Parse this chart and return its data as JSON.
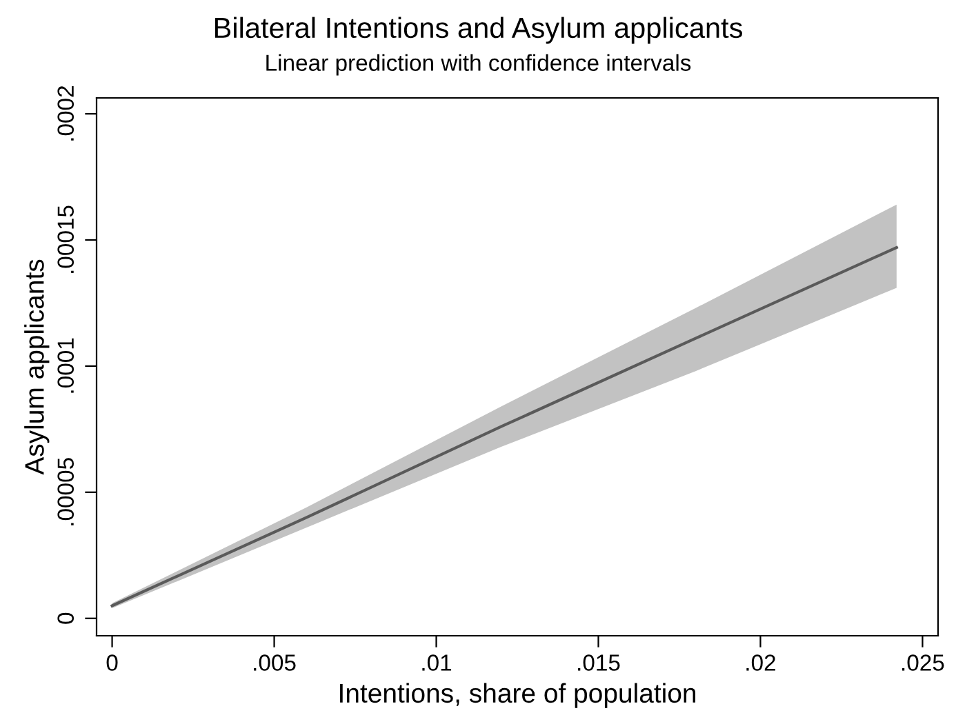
{
  "chart_data": {
    "type": "line",
    "title": "Bilateral Intentions and Asylum applicants",
    "subtitle": "Linear prediction with confidence intervals",
    "xlabel": "Intentions, share of population",
    "ylabel": "Asylum applicants",
    "series": [
      {
        "color": "#5a5a5a",
        "x": [
          0,
          0.006,
          0.012,
          0.018,
          0.0242
        ],
        "values": [
          5e-06,
          4e-05,
          7.6e-05,
          0.000111,
          0.000147
        ],
        "lower": [
          4e-06,
          3.6e-05,
          6.8e-05,
          9.8e-05,
          0.000131
        ],
        "upper": [
          6e-06,
          4.4e-05,
          8.4e-05,
          0.000123,
          0.000164
        ]
      }
    ],
    "xlim": [
      -0.00048,
      0.02548
    ],
    "xticks": [
      {
        "value": 0,
        "label": "0"
      },
      {
        "value": 0.005,
        "label": ".005"
      },
      {
        "value": 0.01,
        "label": ".01"
      },
      {
        "value": 0.015,
        "label": ".015"
      },
      {
        "value": 0.02,
        "label": ".02"
      },
      {
        "value": 0.025,
        "label": ".025"
      }
    ],
    "ylim": [
      -6.9e-06,
      0.0002063
    ],
    "yticks": [
      {
        "value": 0,
        "label": "0"
      },
      {
        "value": 5e-05,
        "label": ".00005"
      },
      {
        "value": 0.0001,
        "label": ".0001"
      },
      {
        "value": 0.00015,
        "label": ".00015"
      },
      {
        "value": 0.0002,
        "label": ".0002"
      }
    ],
    "grid": false,
    "legend": false
  }
}
